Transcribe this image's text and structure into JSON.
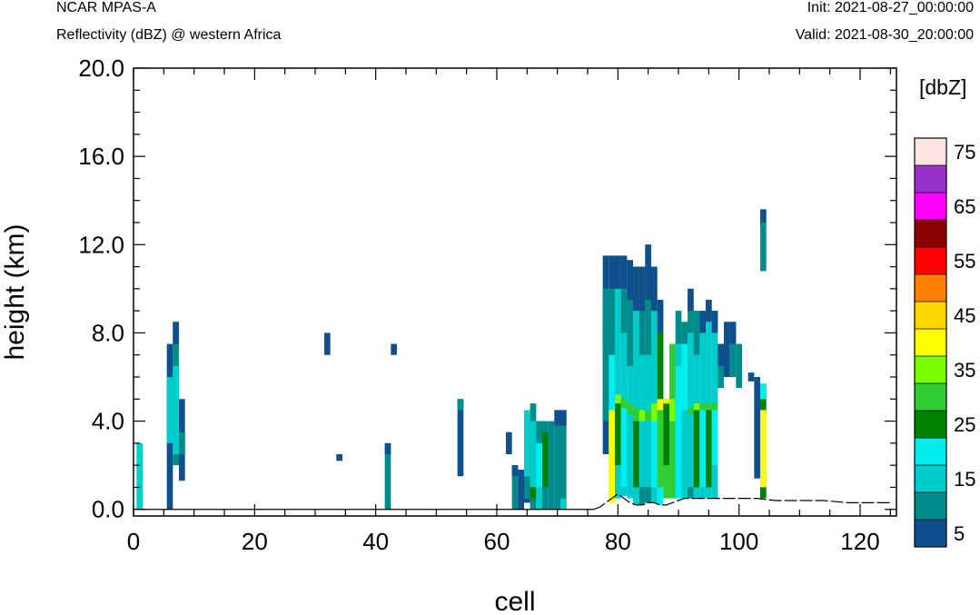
{
  "header": {
    "model": "NCAR MPAS-A",
    "field": "Reflectivity (dBZ) @ western Africa",
    "init": "Init: 2021-08-27_00:00:00",
    "valid": "Valid: 2021-08-30_20:00:00"
  },
  "chart_data": {
    "type": "heatmap",
    "title": "Reflectivity (dBZ) @ western Africa",
    "xlabel": "cell",
    "ylabel": "height (km)",
    "xlim": [
      0,
      126
    ],
    "ylim": [
      -0.3,
      20.0
    ],
    "xticks": [
      0,
      20,
      40,
      60,
      80,
      100,
      120
    ],
    "xtick_labels": [
      "0",
      "20",
      "40",
      "60",
      "80",
      "100",
      "120"
    ],
    "yticks": [
      0,
      4,
      8,
      12,
      16,
      20
    ],
    "ytick_labels": [
      "0.0",
      "4.0",
      "8.0",
      "12.0",
      "16.0",
      "20.0"
    ],
    "colorbar": {
      "title": "[dbZ]",
      "levels": [
        5,
        10,
        15,
        20,
        25,
        30,
        35,
        40,
        45,
        50,
        55,
        60,
        65,
        70,
        75
      ],
      "labels": [
        "5",
        "15",
        "25",
        "35",
        "45",
        "55",
        "65",
        "75"
      ],
      "colors": [
        "#0f4f8c",
        "#008b8b",
        "#00cccc",
        "#00eeee",
        "#008000",
        "#32cd32",
        "#7cfc00",
        "#ffff00",
        "#ffd700",
        "#ff7f00",
        "#ff0000",
        "#8b0000",
        "#ff00ff",
        "#9932cc",
        "#ffe4e1"
      ]
    },
    "cells": [
      {
        "x": 1,
        "ranges": [
          [
            0.0,
            3.0,
            15
          ]
        ]
      },
      {
        "x": 6,
        "ranges": [
          [
            0.0,
            7.5,
            5
          ],
          [
            3.0,
            6.0,
            15
          ]
        ]
      },
      {
        "x": 7,
        "ranges": [
          [
            2.0,
            8.5,
            10
          ],
          [
            2.5,
            6.5,
            15
          ],
          [
            7.5,
            8.5,
            5
          ]
        ]
      },
      {
        "x": 8,
        "ranges": [
          [
            1.3,
            5.0,
            5
          ],
          [
            2.5,
            3.5,
            10
          ]
        ]
      },
      {
        "x": 32,
        "ranges": [
          [
            7.0,
            8.0,
            5
          ]
        ]
      },
      {
        "x": 34,
        "ranges": [
          [
            2.2,
            2.5,
            5
          ]
        ]
      },
      {
        "x": 42,
        "ranges": [
          [
            0.0,
            3.0,
            10
          ],
          [
            2.5,
            3.0,
            5
          ]
        ]
      },
      {
        "x": 43,
        "ranges": [
          [
            7.0,
            7.5,
            5
          ]
        ]
      },
      {
        "x": 54,
        "ranges": [
          [
            1.5,
            5.0,
            5
          ],
          [
            4.5,
            5.0,
            10
          ]
        ]
      },
      {
        "x": 62,
        "ranges": [
          [
            2.5,
            3.5,
            5
          ]
        ]
      },
      {
        "x": 63,
        "ranges": [
          [
            0.0,
            2.0,
            10
          ],
          [
            1.5,
            2.0,
            5
          ]
        ]
      },
      {
        "x": 64,
        "ranges": [
          [
            0.0,
            1.8,
            5
          ]
        ]
      },
      {
        "x": 65,
        "ranges": [
          [
            0.5,
            1.5,
            10
          ],
          [
            1.5,
            4.5,
            15
          ],
          [
            0.3,
            0.5,
            5
          ]
        ]
      },
      {
        "x": 66,
        "ranges": [
          [
            0.0,
            4.8,
            10
          ],
          [
            1.0,
            4.0,
            15
          ],
          [
            0.5,
            1.0,
            25
          ]
        ]
      },
      {
        "x": 67,
        "ranges": [
          [
            0.0,
            4.0,
            15
          ],
          [
            1.0,
            3.0,
            20
          ],
          [
            3.0,
            4.0,
            10
          ]
        ]
      },
      {
        "x": 68,
        "ranges": [
          [
            0.0,
            4.0,
            10
          ],
          [
            1.0,
            3.5,
            25
          ]
        ]
      },
      {
        "x": 69,
        "ranges": [
          [
            0.0,
            4.0,
            10
          ]
        ]
      },
      {
        "x": 70,
        "ranges": [
          [
            0.0,
            4.0,
            10
          ],
          [
            3.8,
            4.5,
            5
          ]
        ]
      },
      {
        "x": 71,
        "ranges": [
          [
            0.0,
            4.5,
            10
          ],
          [
            0.0,
            0.5,
            15
          ],
          [
            3.8,
            4.5,
            5
          ]
        ]
      },
      {
        "x": 78,
        "ranges": [
          [
            2.5,
            11.5,
            5
          ],
          [
            4.0,
            10.0,
            10
          ]
        ]
      },
      {
        "x": 79,
        "ranges": [
          [
            0.3,
            11.5,
            15
          ],
          [
            0.3,
            4.5,
            40
          ],
          [
            4.5,
            7.0,
            20
          ],
          [
            7.0,
            10.0,
            10
          ],
          [
            10.0,
            11.5,
            5
          ]
        ]
      },
      {
        "x": 80,
        "ranges": [
          [
            0.5,
            11.5,
            15
          ],
          [
            2.0,
            4.8,
            25
          ],
          [
            4.8,
            5.2,
            35
          ],
          [
            10.0,
            11.5,
            5
          ]
        ]
      },
      {
        "x": 81,
        "ranges": [
          [
            0.6,
            11.5,
            15
          ],
          [
            1.0,
            4.6,
            20
          ],
          [
            4.6,
            5.0,
            30
          ],
          [
            8.0,
            10.0,
            10
          ],
          [
            10.0,
            11.5,
            5
          ]
        ]
      },
      {
        "x": 82,
        "ranges": [
          [
            0.5,
            11.3,
            15
          ],
          [
            4.3,
            4.8,
            30
          ],
          [
            6.5,
            9.5,
            10
          ],
          [
            9.5,
            11.3,
            5
          ]
        ]
      },
      {
        "x": 83,
        "ranges": [
          [
            0.2,
            11.0,
            15
          ],
          [
            1.0,
            4.0,
            25
          ],
          [
            4.0,
            4.6,
            30
          ],
          [
            9.0,
            11.0,
            5
          ]
        ]
      },
      {
        "x": 84,
        "ranges": [
          [
            0.2,
            11.0,
            10
          ],
          [
            1.0,
            7.0,
            15
          ],
          [
            4.0,
            4.5,
            35
          ],
          [
            9.0,
            11.0,
            5
          ]
        ]
      },
      {
        "x": 85,
        "ranges": [
          [
            0.3,
            12.0,
            10
          ],
          [
            1.0,
            7.0,
            15
          ],
          [
            4.0,
            4.5,
            30
          ],
          [
            9.5,
            12.0,
            5
          ]
        ]
      },
      {
        "x": 86,
        "ranges": [
          [
            0.3,
            11.0,
            15
          ],
          [
            1.0,
            4.0,
            20
          ],
          [
            4.0,
            4.8,
            35
          ],
          [
            9.0,
            11.0,
            5
          ]
        ]
      },
      {
        "x": 87,
        "ranges": [
          [
            0.2,
            9.5,
            20
          ],
          [
            1.0,
            4.5,
            30
          ],
          [
            4.5,
            5.0,
            40
          ],
          [
            5.0,
            8.0,
            25
          ],
          [
            8.0,
            9.5,
            5
          ]
        ]
      },
      {
        "x": 88,
        "ranges": [
          [
            0.5,
            5.0,
            30
          ],
          [
            2.0,
            4.8,
            25
          ],
          [
            4.8,
            5.0,
            40
          ]
        ]
      },
      {
        "x": 89,
        "ranges": [
          [
            0.5,
            7.5,
            30
          ],
          [
            4.0,
            5.0,
            35
          ]
        ]
      },
      {
        "x": 90,
        "ranges": [
          [
            0.5,
            9.0,
            10
          ],
          [
            0.5,
            6.5,
            20
          ],
          [
            6.5,
            7.5,
            15
          ]
        ]
      },
      {
        "x": 91,
        "ranges": [
          [
            0.5,
            8.5,
            15
          ],
          [
            4.5,
            7.5,
            20
          ],
          [
            7.5,
            8.5,
            10
          ]
        ]
      },
      {
        "x": 92,
        "ranges": [
          [
            0.5,
            10.0,
            10
          ],
          [
            1.0,
            8.0,
            15
          ],
          [
            4.3,
            4.6,
            30
          ],
          [
            9.0,
            10.0,
            5
          ]
        ]
      },
      {
        "x": 93,
        "ranges": [
          [
            0.5,
            9.0,
            15
          ],
          [
            1.0,
            4.5,
            25
          ],
          [
            4.5,
            4.8,
            35
          ],
          [
            7.0,
            9.0,
            10
          ]
        ]
      },
      {
        "x": 94,
        "ranges": [
          [
            0.5,
            9.0,
            15
          ],
          [
            1.0,
            4.5,
            20
          ],
          [
            4.5,
            4.8,
            30
          ],
          [
            8.0,
            9.0,
            5
          ]
        ]
      },
      {
        "x": 95,
        "ranges": [
          [
            0.5,
            9.5,
            15
          ],
          [
            1.0,
            4.5,
            25
          ],
          [
            4.5,
            4.8,
            30
          ],
          [
            8.5,
            9.5,
            5
          ]
        ]
      },
      {
        "x": 96,
        "ranges": [
          [
            0.5,
            9.0,
            15
          ],
          [
            2.0,
            4.5,
            20
          ],
          [
            4.5,
            4.8,
            30
          ],
          [
            8.0,
            9.0,
            5
          ]
        ]
      },
      {
        "x": 97,
        "ranges": [
          [
            5.5,
            7.5,
            10
          ],
          [
            6.5,
            7.5,
            5
          ]
        ]
      },
      {
        "x": 98,
        "ranges": [
          [
            6.0,
            8.5,
            5
          ]
        ]
      },
      {
        "x": 99,
        "ranges": [
          [
            6.0,
            8.5,
            10
          ],
          [
            7.5,
            8.5,
            5
          ]
        ]
      },
      {
        "x": 100,
        "ranges": [
          [
            5.5,
            7.5,
            10
          ]
        ]
      },
      {
        "x": 102,
        "ranges": [
          [
            5.8,
            6.2,
            5
          ]
        ]
      },
      {
        "x": 103,
        "ranges": [
          [
            1.4,
            6.0,
            5
          ]
        ]
      },
      {
        "x": 104,
        "ranges": [
          [
            0.5,
            5.7,
            25
          ],
          [
            1.0,
            4.5,
            40
          ],
          [
            5.0,
            5.7,
            20
          ],
          [
            10.8,
            13.6,
            10
          ],
          [
            13.0,
            13.6,
            5
          ]
        ]
      }
    ],
    "terrain": [
      [
        76,
        0.0
      ],
      [
        77,
        0.1
      ],
      [
        78,
        0.3
      ],
      [
        79,
        0.5
      ],
      [
        80,
        0.7
      ],
      [
        81,
        0.5
      ],
      [
        82,
        0.3
      ],
      [
        83,
        0.2
      ],
      [
        84,
        0.2
      ],
      [
        85,
        0.3
      ],
      [
        86,
        0.3
      ],
      [
        87,
        0.2
      ],
      [
        88,
        0.2
      ],
      [
        89,
        0.3
      ],
      [
        90,
        0.4
      ],
      [
        91,
        0.5
      ],
      [
        92,
        0.5
      ],
      [
        93,
        0.5
      ],
      [
        95,
        0.5
      ],
      [
        97,
        0.5
      ],
      [
        100,
        0.5
      ],
      [
        103,
        0.5
      ],
      [
        106,
        0.4
      ],
      [
        110,
        0.4
      ],
      [
        114,
        0.4
      ],
      [
        118,
        0.3
      ],
      [
        122,
        0.3
      ],
      [
        125,
        0.3
      ]
    ]
  }
}
